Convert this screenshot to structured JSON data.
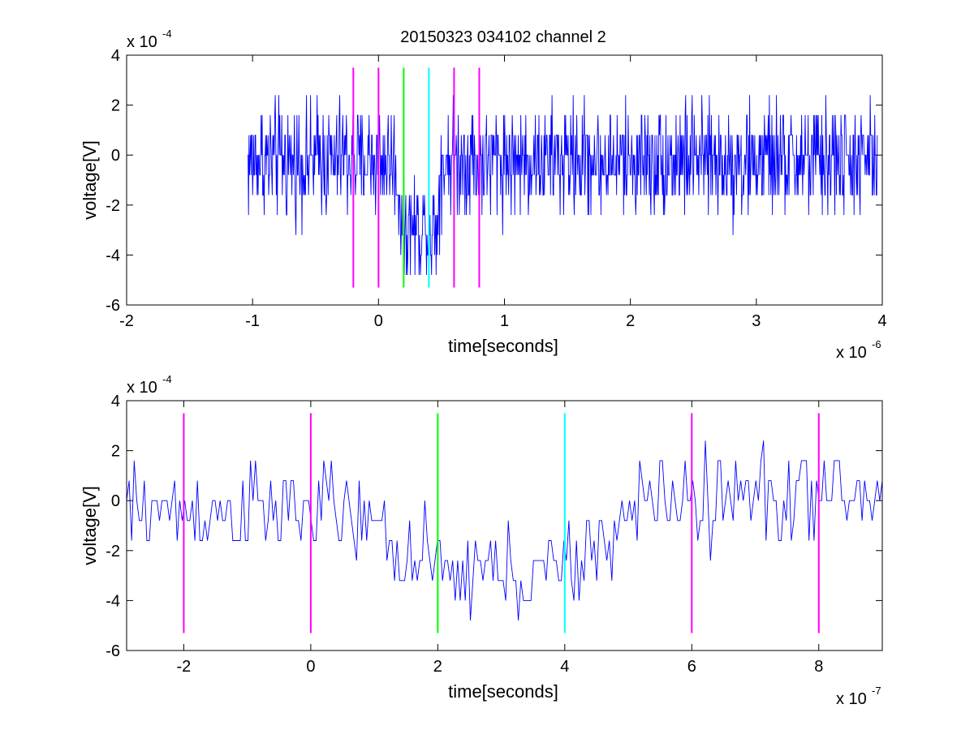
{
  "chart_data": [
    {
      "type": "line",
      "title": "20150323 034102 channel 2",
      "xlabel": "time[seconds]",
      "ylabel": "voltage[V]",
      "x_multiplier": {
        "base": "x 10",
        "exp": "-6"
      },
      "y_multiplier": {
        "base": "x 10",
        "exp": "-4"
      },
      "xlim": [
        -2,
        4
      ],
      "ylim": [
        -6,
        4
      ],
      "xticks": [
        -2,
        -1,
        0,
        1,
        2,
        3,
        4
      ],
      "yticks": [
        -6,
        -4,
        -2,
        0,
        2,
        4
      ],
      "xtick_labels": [
        "-2",
        "-1",
        "0",
        "1",
        "2",
        "3",
        "4"
      ],
      "ytick_labels": [
        "-6",
        "-4",
        "-2",
        "0",
        "2",
        "4"
      ],
      "grid": false,
      "series": [
        {
          "color": "#0000ff",
          "x_range": [
            -1.04,
            3.96
          ],
          "quantization_step": 0.8,
          "note_values": "noisy trace, baseline near 0, dip to about -4 between 0.2 and 0.45, min about -4.8"
        }
      ],
      "markers": [
        {
          "x": -0.2,
          "color": "#ff00ff",
          "y_range": [
            -5.3,
            3.5
          ]
        },
        {
          "x": 0.0,
          "color": "#ff00ff",
          "y_range": [
            -5.3,
            3.5
          ]
        },
        {
          "x": 0.2,
          "color": "#00ff00",
          "y_range": [
            -5.3,
            3.5
          ]
        },
        {
          "x": 0.4,
          "color": "#00ffff",
          "y_range": [
            -5.3,
            3.5
          ]
        },
        {
          "x": 0.6,
          "color": "#ff00ff",
          "y_range": [
            -5.3,
            3.5
          ]
        },
        {
          "x": 0.8,
          "color": "#ff00ff",
          "y_range": [
            -5.3,
            3.5
          ]
        }
      ]
    },
    {
      "type": "line",
      "title": "",
      "xlabel": "time[seconds]",
      "ylabel": "voltage[V]",
      "x_multiplier": {
        "base": "x 10",
        "exp": "-7"
      },
      "y_multiplier": {
        "base": "x 10",
        "exp": "-4"
      },
      "xlim": [
        -2.9,
        9.0
      ],
      "ylim": [
        -6,
        4
      ],
      "xticks": [
        -2,
        0,
        2,
        4,
        6,
        8
      ],
      "yticks": [
        -6,
        -4,
        -2,
        0,
        2,
        4
      ],
      "xtick_labels": [
        "-2",
        "0",
        "2",
        "4",
        "6",
        "8"
      ],
      "ytick_labels": [
        "-6",
        "-4",
        "-2",
        "0",
        "2",
        "4"
      ],
      "grid": false,
      "series": [
        {
          "color": "#0000ff",
          "x_range": [
            -2.9,
            9.0
          ],
          "quantization_step": 0.8,
          "note_values": "noisy trace, baseline near 0, decline from about 0.6 to 4.0 with minimum about -4.8, recovery after 4.5"
        }
      ],
      "markers": [
        {
          "x": -2,
          "color": "#ff00ff",
          "y_range": [
            -5.3,
            3.5
          ]
        },
        {
          "x": 0,
          "color": "#ff00ff",
          "y_range": [
            -5.3,
            3.5
          ]
        },
        {
          "x": 2,
          "color": "#00ff00",
          "y_range": [
            -5.3,
            3.5
          ]
        },
        {
          "x": 4,
          "color": "#00ffff",
          "y_range": [
            -5.3,
            3.5
          ]
        },
        {
          "x": 6,
          "color": "#ff00ff",
          "y_range": [
            -5.3,
            3.5
          ]
        },
        {
          "x": 8,
          "color": "#ff00ff",
          "y_range": [
            -5.3,
            3.5
          ]
        }
      ]
    }
  ]
}
